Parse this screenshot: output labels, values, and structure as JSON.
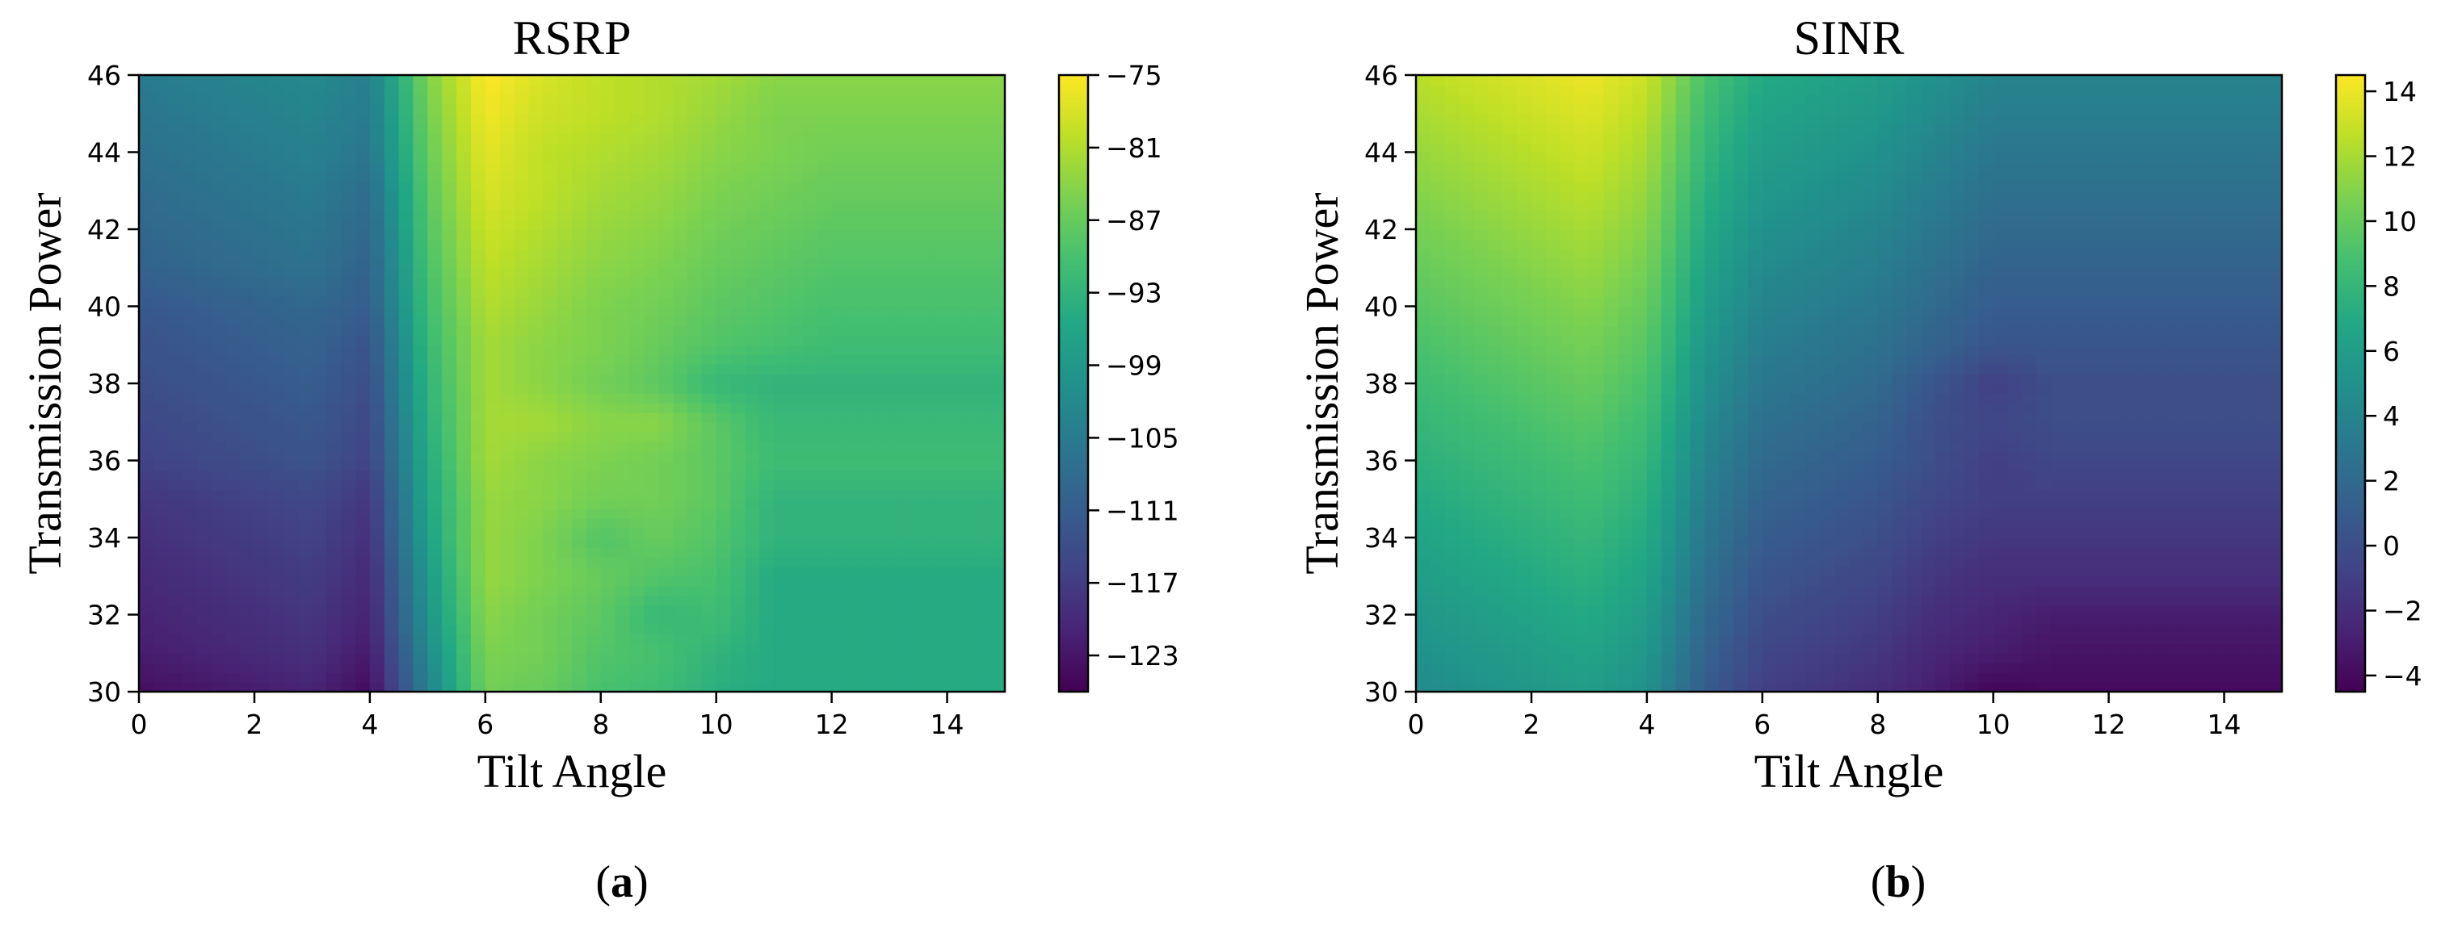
{
  "figure": {
    "panel_labels": [
      "a",
      "b"
    ]
  },
  "colormap": "viridis",
  "chart_data": [
    {
      "type": "heatmap",
      "style": "filled contour",
      "title": "RSRP",
      "xlabel": "Tilt Angle",
      "ylabel": "Transmission Power",
      "xlim": [
        0,
        15
      ],
      "ylim": [
        30,
        46
      ],
      "x": [
        0,
        1,
        2,
        3,
        4,
        5,
        6,
        7,
        8,
        9,
        10,
        11,
        12,
        13,
        14,
        15
      ],
      "y": [
        30,
        31,
        32,
        33,
        34,
        35,
        36,
        37,
        38,
        39,
        40,
        41,
        42,
        43,
        44,
        45,
        46
      ],
      "xticks": [
        "0",
        "2",
        "4",
        "6",
        "8",
        "10",
        "12",
        "14"
      ],
      "yticks": [
        "30",
        "32",
        "34",
        "36",
        "38",
        "40",
        "42",
        "44",
        "46"
      ],
      "colorbar": {
        "range": [
          -126,
          -75
        ],
        "ticks": [
          "−75",
          "−81",
          "−87",
          "−93",
          "−99",
          "−105",
          "−111",
          "−117",
          "−123"
        ]
      },
      "values": [
        [
          -124,
          -123,
          -122,
          -121,
          -124.5,
          -104,
          -86,
          -87,
          -90,
          -91,
          -94,
          -95,
          -95,
          -95,
          -95,
          -95
        ],
        [
          -122,
          -121,
          -120,
          -119,
          -122.5,
          -102,
          -85,
          -86,
          -89,
          -90,
          -93,
          -95,
          -95,
          -95,
          -95,
          -95
        ],
        [
          -121,
          -120,
          -119,
          -118,
          -121,
          -100,
          -84,
          -86,
          -88,
          -92,
          -91,
          -95,
          -95,
          -95,
          -95,
          -95
        ],
        [
          -120,
          -119,
          -118,
          -117,
          -120,
          -99,
          -83,
          -85,
          -87,
          -89,
          -90,
          -95,
          -95,
          -95,
          -95,
          -95
        ],
        [
          -119,
          -118,
          -117,
          -116,
          -119,
          -97,
          -83,
          -85,
          -89,
          -87,
          -89,
          -93,
          -93,
          -93,
          -93,
          -93
        ],
        [
          -118,
          -117,
          -116,
          -115,
          -118,
          -96,
          -83,
          -84,
          -86,
          -86,
          -88,
          -93,
          -93,
          -93,
          -93,
          -93
        ],
        [
          -116,
          -115,
          -114,
          -113,
          -116,
          -95,
          -82,
          -84,
          -85,
          -86,
          -88,
          -91,
          -91,
          -91,
          -91,
          -91
        ],
        [
          -115,
          -114,
          -113,
          -112,
          -115,
          -94,
          -82,
          -82,
          -84,
          -84,
          -88,
          -92,
          -92,
          -92,
          -92,
          -92
        ],
        [
          -114,
          -113,
          -112,
          -111,
          -114,
          -93,
          -82,
          -84,
          -86,
          -88,
          -92,
          -93,
          -93,
          -93,
          -93,
          -93
        ],
        [
          -113,
          -112,
          -111,
          -110,
          -113,
          -92,
          -82,
          -84,
          -85,
          -87,
          -89,
          -90,
          -91,
          -91,
          -91,
          -91
        ],
        [
          -112,
          -111,
          -110,
          -109,
          -111,
          -91,
          -81,
          -83,
          -85,
          -86,
          -88,
          -89,
          -90,
          -90,
          -90,
          -90
        ],
        [
          -110,
          -109,
          -108,
          -107,
          -110,
          -90,
          -80,
          -82,
          -84,
          -85,
          -87,
          -88,
          -89,
          -89,
          -89,
          -89
        ],
        [
          -109,
          -108,
          -107,
          -106,
          -109,
          -89,
          -79,
          -81,
          -83,
          -84,
          -86,
          -87,
          -88,
          -88,
          -88,
          -88
        ],
        [
          -108,
          -107,
          -106,
          -105,
          -108,
          -88,
          -78,
          -80,
          -82,
          -83,
          -85,
          -86,
          -87,
          -87,
          -87,
          -87
        ],
        [
          -107,
          -106,
          -105,
          -104,
          -106,
          -87,
          -77,
          -80,
          -81,
          -82,
          -84,
          -85,
          -86,
          -86,
          -86,
          -86
        ],
        [
          -106,
          -105,
          -104,
          -103,
          -105,
          -86,
          -76,
          -79,
          -80,
          -81,
          -83,
          -85,
          -85,
          -85,
          -85,
          -85
        ],
        [
          -105,
          -104,
          -103,
          -102,
          -104,
          -85,
          -75,
          -78,
          -80,
          -81,
          -82,
          -84,
          -84,
          -84,
          -84,
          -84
        ]
      ]
    },
    {
      "type": "heatmap",
      "style": "filled contour",
      "title": "SINR",
      "xlabel": "Tilt Angle",
      "ylabel": "Transmission Power",
      "xlim": [
        0,
        15
      ],
      "ylim": [
        30,
        46
      ],
      "x": [
        0,
        1,
        2,
        3,
        4,
        5,
        6,
        7,
        8,
        9,
        10,
        11,
        12,
        13,
        14,
        15
      ],
      "y": [
        30,
        31,
        32,
        33,
        34,
        35,
        36,
        37,
        38,
        39,
        40,
        41,
        42,
        43,
        44,
        45,
        46
      ],
      "xticks": [
        "0",
        "2",
        "4",
        "6",
        "8",
        "10",
        "12",
        "14"
      ],
      "yticks": [
        "30",
        "32",
        "34",
        "36",
        "38",
        "40",
        "42",
        "44",
        "46"
      ],
      "colorbar": {
        "range": [
          -4.5,
          14.5
        ],
        "ticks": [
          "14",
          "12",
          "10",
          "8",
          "6",
          "4",
          "2",
          "0",
          "−2",
          "−4"
        ]
      },
      "values": [
        [
          4.5,
          5.0,
          5.5,
          6.0,
          5.0,
          1.0,
          -1.0,
          -1.5,
          -2.0,
          -3.0,
          -4.3,
          -4.0,
          -4.0,
          -4.0,
          -4.0,
          -4.0
        ],
        [
          5.0,
          5.5,
          6.0,
          6.5,
          5.5,
          1.5,
          -0.5,
          -1.0,
          -1.5,
          -2.5,
          -3.0,
          -3.5,
          -3.5,
          -3.5,
          -3.5,
          -3.5
        ],
        [
          5.5,
          6.0,
          6.5,
          7.0,
          6.0,
          2.0,
          0.0,
          -0.5,
          -1.0,
          -2.0,
          -2.5,
          -3.0,
          -3.0,
          -3.0,
          -3.0,
          -3.0
        ],
        [
          6.0,
          6.5,
          7.0,
          7.5,
          6.5,
          2.5,
          0.5,
          0.0,
          -0.5,
          -1.5,
          -2.0,
          -2.0,
          -2.0,
          -2.0,
          -2.0,
          -2.0
        ],
        [
          6.5,
          7.0,
          7.5,
          8.0,
          7.0,
          3.0,
          1.0,
          0.5,
          0.0,
          -1.0,
          -1.5,
          -1.5,
          -1.5,
          -1.5,
          -1.5,
          -1.5
        ],
        [
          7.0,
          7.5,
          8.0,
          8.5,
          7.5,
          3.5,
          1.5,
          1.0,
          0.5,
          -0.5,
          -1.0,
          -1.0,
          -1.0,
          -1.0,
          -1.0,
          -1.0
        ],
        [
          7.5,
          8.0,
          8.5,
          9.0,
          8.0,
          4.0,
          2.0,
          1.5,
          1.0,
          0.0,
          -1.0,
          -0.5,
          -0.5,
          -0.5,
          -0.5,
          -0.5
        ],
        [
          8.0,
          8.5,
          9.0,
          9.5,
          8.5,
          4.5,
          2.5,
          2.0,
          1.5,
          0.0,
          -0.5,
          0.0,
          0.0,
          0.0,
          0.0,
          0.0
        ],
        [
          8.5,
          9.0,
          9.5,
          10.0,
          9.0,
          5.0,
          3.0,
          2.5,
          2.0,
          0.5,
          -1.0,
          0.0,
          0.0,
          0.0,
          0.0,
          0.0
        ],
        [
          9.0,
          9.5,
          10.0,
          10.5,
          9.5,
          5.5,
          3.5,
          3.0,
          2.5,
          1.5,
          0.5,
          0.5,
          0.5,
          0.5,
          0.5,
          0.5
        ],
        [
          9.5,
          10.0,
          10.5,
          11.0,
          10.0,
          6.0,
          4.0,
          3.5,
          3.0,
          2.0,
          1.0,
          1.0,
          1.0,
          1.0,
          1.0,
          1.0
        ],
        [
          10.0,
          10.5,
          11.0,
          11.5,
          10.5,
          6.5,
          4.5,
          4.0,
          3.5,
          2.5,
          1.5,
          1.5,
          1.5,
          1.5,
          1.5,
          1.5
        ],
        [
          10.5,
          11.0,
          11.5,
          12.0,
          11.0,
          7.0,
          5.0,
          4.5,
          4.0,
          3.0,
          2.0,
          2.0,
          2.0,
          2.0,
          2.0,
          2.0
        ],
        [
          11.0,
          11.5,
          12.0,
          12.5,
          11.5,
          7.5,
          5.5,
          5.0,
          4.5,
          3.5,
          2.5,
          2.5,
          2.5,
          2.5,
          2.5,
          2.5
        ],
        [
          11.5,
          12.0,
          12.5,
          13.0,
          12.0,
          8.0,
          6.0,
          5.5,
          5.0,
          4.0,
          3.0,
          3.0,
          3.0,
          3.0,
          3.0,
          3.0
        ],
        [
          12.0,
          12.5,
          13.0,
          13.5,
          12.5,
          8.5,
          6.5,
          6.0,
          5.5,
          4.5,
          3.5,
          3.5,
          3.5,
          3.5,
          3.5,
          3.5
        ],
        [
          12.5,
          13.0,
          13.5,
          14.0,
          13.0,
          9.0,
          7.0,
          6.5,
          6.0,
          5.0,
          4.0,
          4.0,
          4.0,
          4.0,
          4.0,
          4.0
        ]
      ]
    }
  ]
}
